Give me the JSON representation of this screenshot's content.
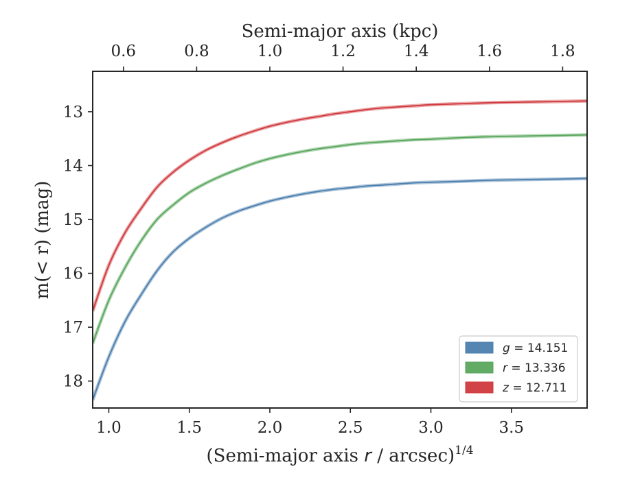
{
  "chart_data": {
    "type": "line",
    "xlabel": "(Semi-major axis ",
    "xlabel_var": "r",
    "xlabel_suffix": " / arcsec)",
    "xlabel_exp": "1/4",
    "ylabel": "m(< r) (mag)",
    "top_xlabel": "Semi-major axis (kpc)",
    "xlim": [
      0.9,
      3.97
    ],
    "ylim": [
      18.5,
      12.25
    ],
    "y_inverted": true,
    "x_ticks": [
      1.0,
      1.5,
      2.0,
      2.5,
      3.0,
      3.5
    ],
    "x_tick_labels": [
      "1.0",
      "1.5",
      "2.0",
      "2.5",
      "3.0",
      "3.5"
    ],
    "y_ticks": [
      13,
      14,
      15,
      16,
      17,
      18
    ],
    "y_tick_labels": [
      "13",
      "14",
      "15",
      "16",
      "17",
      "18"
    ],
    "top_ticks_kpc": [
      0.6,
      0.8,
      1.0,
      1.2,
      1.4,
      1.6,
      1.8
    ],
    "top_tick_labels": [
      "0.6",
      "0.8",
      "1.0",
      "1.2",
      "1.4",
      "1.6",
      "1.8"
    ],
    "top_axis_kpc_per_r14": [
      0.12,
      0.44
    ],
    "grid": false,
    "legend_position": "lower-right",
    "series": [
      {
        "name": "g = 14.151",
        "legend_var": "g",
        "legend_value": "14.151",
        "color": "#4c7fae",
        "x": [
          0.9,
          1.0,
          1.1,
          1.2,
          1.3,
          1.4,
          1.5,
          1.6,
          1.7,
          1.8,
          1.9,
          2.0,
          2.1,
          2.2,
          2.3,
          2.4,
          2.5,
          2.6,
          2.7,
          2.8,
          2.9,
          3.0,
          3.2,
          3.4,
          3.6,
          3.8,
          3.97
        ],
        "y": [
          18.35,
          17.55,
          16.9,
          16.4,
          15.95,
          15.6,
          15.35,
          15.15,
          14.98,
          14.85,
          14.75,
          14.66,
          14.59,
          14.53,
          14.48,
          14.44,
          14.41,
          14.38,
          14.36,
          14.34,
          14.32,
          14.31,
          14.29,
          14.27,
          14.26,
          14.25,
          14.24
        ]
      },
      {
        "name": "r = 13.336",
        "legend_var": "r",
        "legend_value": "13.336",
        "color": "#58a65c",
        "x": [
          0.9,
          1.0,
          1.1,
          1.2,
          1.3,
          1.4,
          1.5,
          1.6,
          1.7,
          1.8,
          1.9,
          2.0,
          2.1,
          2.2,
          2.3,
          2.4,
          2.5,
          2.6,
          2.7,
          2.8,
          2.9,
          3.0,
          3.2,
          3.4,
          3.6,
          3.8,
          3.97
        ],
        "y": [
          17.3,
          16.5,
          15.9,
          15.4,
          15.0,
          14.73,
          14.5,
          14.33,
          14.19,
          14.07,
          13.96,
          13.87,
          13.8,
          13.74,
          13.69,
          13.65,
          13.61,
          13.58,
          13.56,
          13.54,
          13.52,
          13.51,
          13.48,
          13.46,
          13.45,
          13.44,
          13.43
        ]
      },
      {
        "name": "z = 12.711",
        "legend_var": "z",
        "legend_value": "12.711",
        "color": "#d0393d",
        "x": [
          0.9,
          1.0,
          1.1,
          1.2,
          1.3,
          1.4,
          1.5,
          1.6,
          1.7,
          1.8,
          1.9,
          2.0,
          2.1,
          2.2,
          2.3,
          2.4,
          2.5,
          2.6,
          2.7,
          2.8,
          2.9,
          3.0,
          3.2,
          3.4,
          3.6,
          3.8,
          3.97
        ],
        "y": [
          16.7,
          15.85,
          15.25,
          14.8,
          14.4,
          14.12,
          13.9,
          13.72,
          13.58,
          13.46,
          13.36,
          13.27,
          13.2,
          13.14,
          13.09,
          13.04,
          13.0,
          12.96,
          12.93,
          12.91,
          12.89,
          12.87,
          12.85,
          12.83,
          12.82,
          12.81,
          12.8
        ]
      }
    ]
  }
}
